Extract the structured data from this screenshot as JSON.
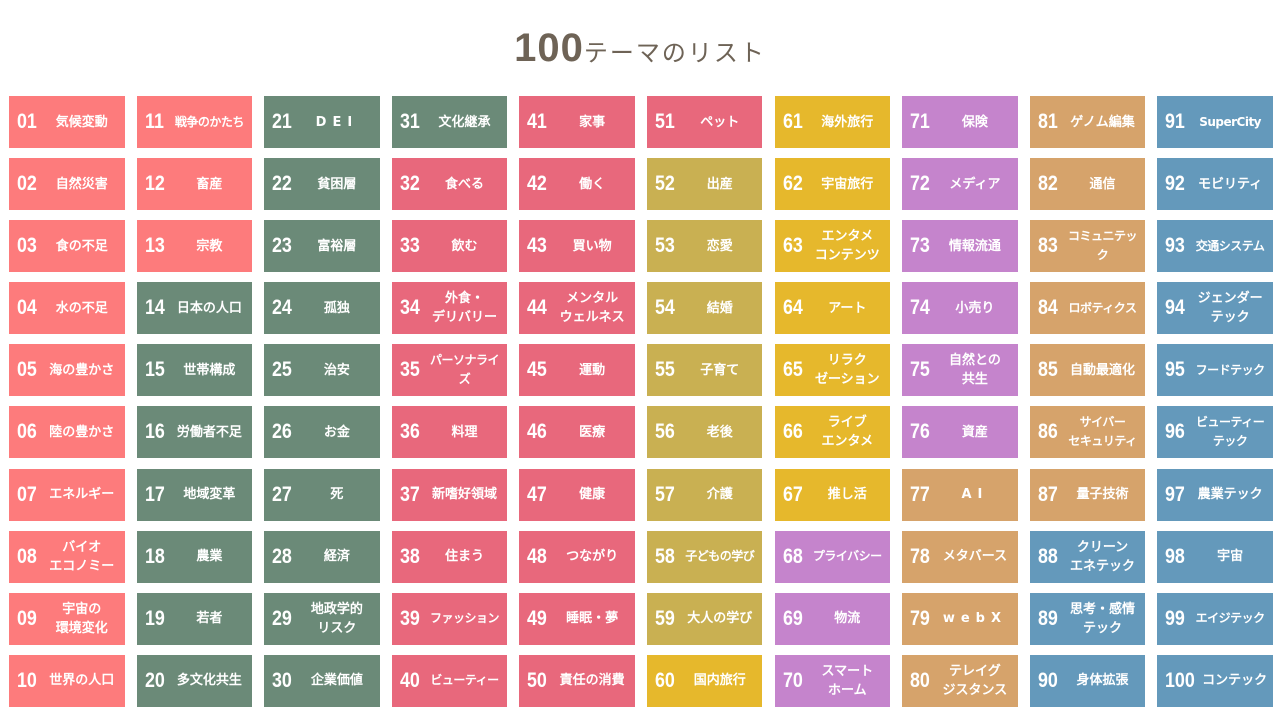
{
  "header": {
    "title_number": "100",
    "title_text": "テーマのリスト"
  },
  "colors": {
    "coral": "#fd7b7c",
    "green": "#6b8a78",
    "crimson": "#e8687c",
    "olive": "#c9b052",
    "mustard": "#e6b82c",
    "lilac": "#c584cc",
    "tan": "#d6a36b",
    "blue": "#6499bb",
    "title": "#6e6356"
  },
  "themes": [
    {
      "no": "01",
      "label": "気候変動",
      "color": "coral"
    },
    {
      "no": "02",
      "label": "自然災害",
      "color": "coral"
    },
    {
      "no": "03",
      "label": "食の不足",
      "color": "coral"
    },
    {
      "no": "04",
      "label": "水の不足",
      "color": "coral"
    },
    {
      "no": "05",
      "label": "海の豊かさ",
      "color": "coral"
    },
    {
      "no": "06",
      "label": "陸の豊かさ",
      "color": "coral"
    },
    {
      "no": "07",
      "label": "エネルギー",
      "color": "coral"
    },
    {
      "no": "08",
      "label": "バイオ\nエコノミー",
      "color": "coral"
    },
    {
      "no": "09",
      "label": "宇宙の\n環境変化",
      "color": "coral"
    },
    {
      "no": "10",
      "label": "世界の人口",
      "color": "coral"
    },
    {
      "no": "11",
      "label": "戦争のかたち",
      "color": "coral"
    },
    {
      "no": "12",
      "label": "畜産",
      "color": "coral"
    },
    {
      "no": "13",
      "label": "宗教",
      "color": "coral"
    },
    {
      "no": "14",
      "label": "日本の人口",
      "color": "green"
    },
    {
      "no": "15",
      "label": "世帯構成",
      "color": "green"
    },
    {
      "no": "16",
      "label": "労働者不足",
      "color": "green"
    },
    {
      "no": "17",
      "label": "地域変革",
      "color": "green"
    },
    {
      "no": "18",
      "label": "農業",
      "color": "green"
    },
    {
      "no": "19",
      "label": "若者",
      "color": "green"
    },
    {
      "no": "20",
      "label": "多文化共生",
      "color": "green"
    },
    {
      "no": "21",
      "label": "DEI",
      "color": "green"
    },
    {
      "no": "22",
      "label": "貧困層",
      "color": "green"
    },
    {
      "no": "23",
      "label": "富裕層",
      "color": "green"
    },
    {
      "no": "24",
      "label": "孤独",
      "color": "green"
    },
    {
      "no": "25",
      "label": "治安",
      "color": "green"
    },
    {
      "no": "26",
      "label": "お金",
      "color": "green"
    },
    {
      "no": "27",
      "label": "死",
      "color": "green"
    },
    {
      "no": "28",
      "label": "経済",
      "color": "green"
    },
    {
      "no": "29",
      "label": "地政学的\nリスク",
      "color": "green"
    },
    {
      "no": "30",
      "label": "企業価値",
      "color": "green"
    },
    {
      "no": "31",
      "label": "文化継承",
      "color": "green"
    },
    {
      "no": "32",
      "label": "食べる",
      "color": "crimson"
    },
    {
      "no": "33",
      "label": "飲む",
      "color": "crimson"
    },
    {
      "no": "34",
      "label": "外食・\nデリバリー",
      "color": "crimson"
    },
    {
      "no": "35",
      "label": "パーソナライズ",
      "color": "crimson"
    },
    {
      "no": "36",
      "label": "料理",
      "color": "crimson"
    },
    {
      "no": "37",
      "label": "新嗜好領域",
      "color": "crimson"
    },
    {
      "no": "38",
      "label": "住まう",
      "color": "crimson"
    },
    {
      "no": "39",
      "label": "ファッション",
      "color": "crimson"
    },
    {
      "no": "40",
      "label": "ビューティー",
      "color": "crimson"
    },
    {
      "no": "41",
      "label": "家事",
      "color": "crimson"
    },
    {
      "no": "42",
      "label": "働く",
      "color": "crimson"
    },
    {
      "no": "43",
      "label": "買い物",
      "color": "crimson"
    },
    {
      "no": "44",
      "label": "メンタル\nウェルネス",
      "color": "crimson"
    },
    {
      "no": "45",
      "label": "運動",
      "color": "crimson"
    },
    {
      "no": "46",
      "label": "医療",
      "color": "crimson"
    },
    {
      "no": "47",
      "label": "健康",
      "color": "crimson"
    },
    {
      "no": "48",
      "label": "つながり",
      "color": "crimson"
    },
    {
      "no": "49",
      "label": "睡眠・夢",
      "color": "crimson"
    },
    {
      "no": "50",
      "label": "責任の消費",
      "color": "crimson"
    },
    {
      "no": "51",
      "label": "ペット",
      "color": "crimson"
    },
    {
      "no": "52",
      "label": "出産",
      "color": "olive"
    },
    {
      "no": "53",
      "label": "恋愛",
      "color": "olive"
    },
    {
      "no": "54",
      "label": "結婚",
      "color": "olive"
    },
    {
      "no": "55",
      "label": "子育て",
      "color": "olive"
    },
    {
      "no": "56",
      "label": "老後",
      "color": "olive"
    },
    {
      "no": "57",
      "label": "介護",
      "color": "olive"
    },
    {
      "no": "58",
      "label": "子どもの学び",
      "color": "olive"
    },
    {
      "no": "59",
      "label": "大人の学び",
      "color": "olive"
    },
    {
      "no": "60",
      "label": "国内旅行",
      "color": "mustard"
    },
    {
      "no": "61",
      "label": "海外旅行",
      "color": "mustard"
    },
    {
      "no": "62",
      "label": "宇宙旅行",
      "color": "mustard"
    },
    {
      "no": "63",
      "label": "エンタメ\nコンテンツ",
      "color": "mustard"
    },
    {
      "no": "64",
      "label": "アート",
      "color": "mustard"
    },
    {
      "no": "65",
      "label": "リラク\nゼーション",
      "color": "mustard"
    },
    {
      "no": "66",
      "label": "ライブ\nエンタメ",
      "color": "mustard"
    },
    {
      "no": "67",
      "label": "推し活",
      "color": "mustard"
    },
    {
      "no": "68",
      "label": "プライバシー",
      "color": "lilac"
    },
    {
      "no": "69",
      "label": "物流",
      "color": "lilac"
    },
    {
      "no": "70",
      "label": "スマート\nホーム",
      "color": "lilac"
    },
    {
      "no": "71",
      "label": "保険",
      "color": "lilac"
    },
    {
      "no": "72",
      "label": "メディア",
      "color": "lilac"
    },
    {
      "no": "73",
      "label": "情報流通",
      "color": "lilac"
    },
    {
      "no": "74",
      "label": "小売り",
      "color": "lilac"
    },
    {
      "no": "75",
      "label": "自然との\n共生",
      "color": "lilac"
    },
    {
      "no": "76",
      "label": "資産",
      "color": "lilac"
    },
    {
      "no": "77",
      "label": "AI",
      "color": "tan"
    },
    {
      "no": "78",
      "label": "メタバース",
      "color": "tan"
    },
    {
      "no": "79",
      "label": "webX",
      "color": "tan"
    },
    {
      "no": "80",
      "label": "テレイグ\nジスタンス",
      "color": "tan"
    },
    {
      "no": "81",
      "label": "ゲノム編集",
      "color": "tan"
    },
    {
      "no": "82",
      "label": "通信",
      "color": "tan"
    },
    {
      "no": "83",
      "label": "コミュニテック",
      "color": "tan"
    },
    {
      "no": "84",
      "label": "ロボティクス",
      "color": "tan"
    },
    {
      "no": "85",
      "label": "自動最適化",
      "color": "tan"
    },
    {
      "no": "86",
      "label": "サイバー\nセキュリティ",
      "color": "tan"
    },
    {
      "no": "87",
      "label": "量子技術",
      "color": "tan"
    },
    {
      "no": "88",
      "label": "クリーン\nエネテック",
      "color": "blue"
    },
    {
      "no": "89",
      "label": "思考・感情\nテック",
      "color": "blue"
    },
    {
      "no": "90",
      "label": "身体拡張",
      "color": "blue"
    },
    {
      "no": "91",
      "label": "SuperCity",
      "color": "blue"
    },
    {
      "no": "92",
      "label": "モビリティ",
      "color": "blue"
    },
    {
      "no": "93",
      "label": "交通システム",
      "color": "blue"
    },
    {
      "no": "94",
      "label": "ジェンダー\nテック",
      "color": "blue"
    },
    {
      "no": "95",
      "label": "フードテック",
      "color": "blue"
    },
    {
      "no": "96",
      "label": "ビューティー\nテック",
      "color": "blue"
    },
    {
      "no": "97",
      "label": "農業テック",
      "color": "blue"
    },
    {
      "no": "98",
      "label": "宇宙",
      "color": "blue"
    },
    {
      "no": "99",
      "label": "エイジテック",
      "color": "blue"
    },
    {
      "no": "100",
      "label": "コンテック",
      "color": "blue"
    }
  ]
}
